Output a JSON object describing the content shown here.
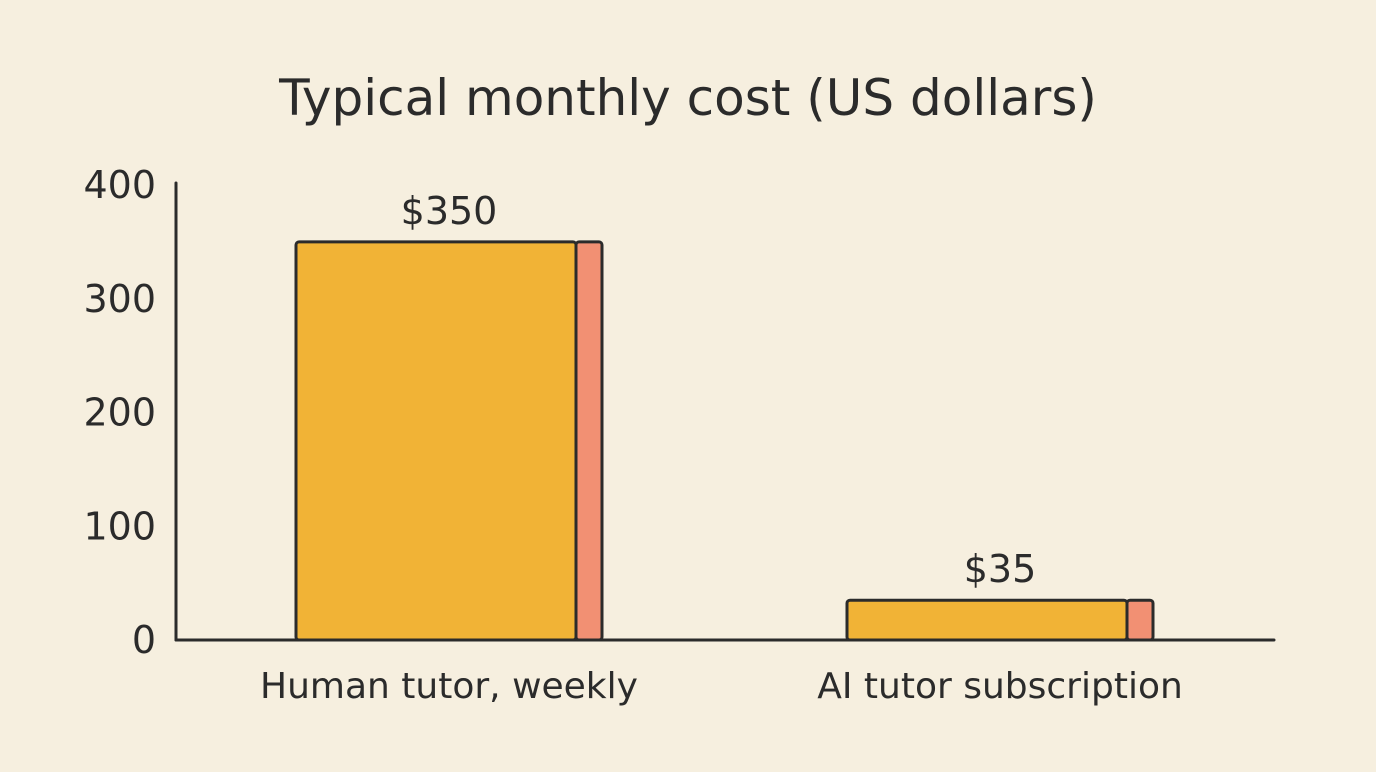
{
  "chart_data": {
    "type": "bar",
    "title": "Typical monthly cost (US dollars)",
    "categories": [
      "Human tutor, weekly",
      "AI tutor subscription"
    ],
    "values": [
      350,
      35
    ],
    "value_labels": [
      "$350",
      "$35"
    ],
    "ylim": [
      0,
      400
    ],
    "yticks": [
      0,
      100,
      200,
      300,
      400
    ],
    "xlabel": "",
    "ylabel": "",
    "grid": false,
    "legend": "none",
    "colors": {
      "background": "#f6efdf",
      "bar_face": "#f1b336",
      "bar_side": "#f29073",
      "outline": "#2b2b2b",
      "text": "#2b2b2b"
    }
  }
}
